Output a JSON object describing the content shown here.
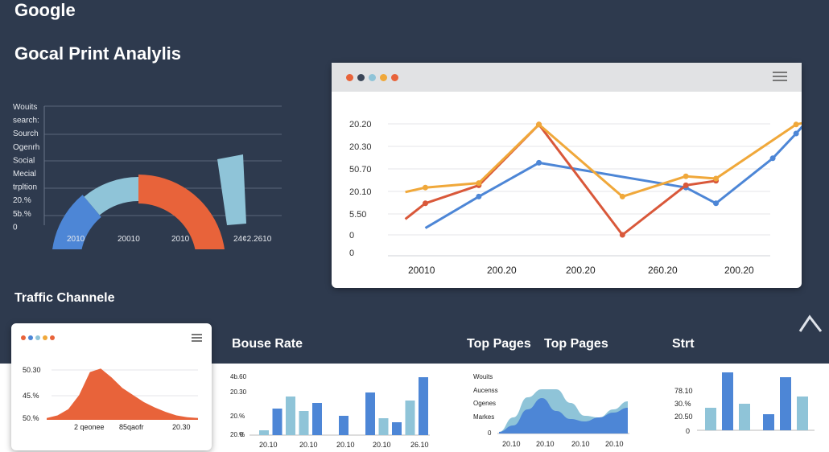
{
  "brand": "Google",
  "headline": "Gocal Print Analylis",
  "traffic_title": "Traffic Channele",
  "bounce_title": "Bouse Rate",
  "top_pages_title_a": "Top Pages",
  "top_pages_title_b": "Top Pages",
  "stat_title": "Strt",
  "colors": {
    "background": "#2e3a4e",
    "blue": "#4d86d6",
    "light_blue": "#8fc4d8",
    "orange": "#e8633a",
    "amber": "#f0a83a",
    "red_orange": "#d9583a"
  },
  "window_dots": [
    "#e8633a",
    "#3b4658",
    "#8fc4d8",
    "#f0a83a",
    "#e8633a"
  ],
  "small_card_dots": [
    "#e8633a",
    "#4d86d6",
    "#8fc4d8",
    "#f0a83a",
    "#e8633a"
  ],
  "chart_data": [
    {
      "type": "gauge",
      "y_labels": [
        "Wouits",
        "search:",
        "Sourch",
        "Ogenrh",
        "Social",
        "Mecial",
        "trpltion",
        "20.%",
        "5b.%",
        "0"
      ],
      "x_labels": [
        "2010",
        "20010",
        "2010",
        "24¢2.2610"
      ],
      "segments": [
        {
          "color": "#4d86d6",
          "value": 25
        },
        {
          "color": "#8fc4d8",
          "value": 25
        },
        {
          "color": "#e8633a",
          "value": 50
        },
        {
          "color": "#8fc4d8",
          "value": 10
        }
      ]
    },
    {
      "type": "line",
      "y_labels": [
        "20.20",
        "20.30",
        "50.70",
        "20.10",
        "5.50",
        "0",
        "0"
      ],
      "x_labels": [
        "20010",
        "200.20",
        "200.20",
        "260.20",
        "200.20"
      ],
      "series": [
        {
          "color": "#4d86d6",
          "values": [
            [
              0.5,
              0.3
            ],
            [
              1.3,
              1.7
            ],
            [
              2.2,
              3.2
            ],
            [
              4.4,
              2.1
            ],
            [
              4.85,
              1.4
            ],
            [
              5.7,
              3.4
            ],
            [
              6.05,
              4.5
            ],
            [
              6.35,
              5.5
            ]
          ]
        },
        {
          "color": "#d9583a",
          "values": [
            [
              0.2,
              0.7
            ],
            [
              0.5,
              1.4
            ],
            [
              1.3,
              2.2
            ],
            [
              2.2,
              4.9
            ],
            [
              3.45,
              0.0
            ],
            [
              4.4,
              2.2
            ],
            [
              4.85,
              2.4
            ]
          ]
        },
        {
          "color": "#f0a83a",
          "values": [
            [
              0.2,
              1.9
            ],
            [
              0.5,
              2.1
            ],
            [
              1.3,
              2.3
            ],
            [
              2.2,
              4.9
            ],
            [
              3.45,
              1.7
            ],
            [
              4.4,
              2.6
            ],
            [
              4.85,
              2.5
            ],
            [
              6.05,
              4.9
            ],
            [
              6.35,
              5.1
            ]
          ]
        }
      ]
    },
    {
      "type": "area",
      "y_labels": [
        "50.30",
        "45.%",
        "50.%"
      ],
      "x_labels": [
        "2 qeonee",
        "85qaofr",
        "20.30"
      ],
      "values": [
        2,
        5,
        12,
        28,
        54,
        58,
        48,
        36,
        28,
        20,
        14,
        9,
        5,
        3,
        2
      ]
    },
    {
      "type": "bar",
      "y_labels": [
        "4b.60",
        "20.30",
        "20.%",
        "20.%",
        "0"
      ],
      "x_labels": [
        "20.10",
        "20.10",
        "20.10",
        "20.10",
        "26.10"
      ],
      "values": [
        6,
        33,
        48,
        30,
        40,
        0,
        24,
        0,
        53,
        21,
        16,
        43,
        72
      ],
      "colors": [
        "#8fc4d8",
        "#4d86d6",
        "#8fc4d8",
        "#8fc4d8",
        "#4d86d6",
        "#ffffff",
        "#4d86d6",
        "#ffffff",
        "#4d86d6",
        "#8fc4d8",
        "#4d86d6",
        "#8fc4d8",
        "#4d86d6"
      ]
    },
    {
      "type": "area",
      "y_labels": [
        "Wouits",
        "Aucenss",
        "Ogenes",
        "Markes"
      ],
      "x_labels": [
        "20.10",
        "20.10",
        "20.10",
        "20.10"
      ],
      "series": [
        {
          "name": "",
          "color": "#8fc4d8",
          "values": [
            2,
            20,
            45,
            55,
            55,
            38,
            22,
            20,
            30,
            40
          ]
        },
        {
          "name": "",
          "color": "#4d86d6",
          "values": [
            2,
            10,
            30,
            44,
            28,
            18,
            15,
            20,
            26,
            32
          ]
        }
      ]
    },
    {
      "type": "bar",
      "y_labels": [
        "78.10",
        "30.%",
        "20.50",
        "0"
      ],
      "values": [
        28,
        72,
        33,
        20,
        66,
        42
      ],
      "colors": [
        "#8fc4d8",
        "#4d86d6",
        "#8fc4d8",
        "#4d86d6",
        "#4d86d6",
        "#8fc4d8"
      ]
    }
  ]
}
